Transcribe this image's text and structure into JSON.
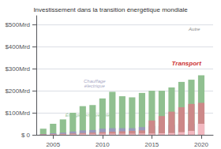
{
  "chart_data": {
    "type": "bar",
    "stacked": true,
    "title": "Investissement dans la transition énergétique mondiale",
    "x": [
      2004,
      2005,
      2006,
      2007,
      2008,
      2009,
      2010,
      2011,
      2012,
      2013,
      2014,
      2015,
      2016,
      2017,
      2018,
      2019,
      2020
    ],
    "series": [
      {
        "color": "#90c090",
        "values": [
          28,
          50,
          70,
          100,
          130,
          135,
          165,
          195,
          175,
          170,
          190,
          200,
          200,
          215,
          240,
          250,
          270
        ]
      },
      {
        "color": "#9999bb",
        "values": [
          4,
          7,
          10,
          15,
          20,
          22,
          28,
          30,
          30,
          30,
          35,
          40,
          40,
          45,
          50,
          50,
          55
        ]
      },
      {
        "color": "#cc8888",
        "values": [
          2,
          3,
          4,
          6,
          8,
          10,
          12,
          14,
          16,
          18,
          20,
          65,
          85,
          105,
          125,
          140,
          145
        ]
      },
      {
        "color": "#f2b8c0",
        "values": [
          1,
          2,
          2,
          3,
          4,
          4,
          5,
          5,
          5,
          5,
          6,
          6,
          7,
          8,
          12,
          18,
          50
        ]
      }
    ],
    "xlim": [
      2003.3,
      2021.2
    ],
    "xticks": [
      2005,
      2010,
      2015,
      2020
    ],
    "ylim": [
      0,
      540
    ],
    "yticks": [
      {
        "value": 0,
        "label": "$ 0"
      },
      {
        "value": 100,
        "label": "$100Mrd"
      },
      {
        "value": 200,
        "label": "$200Mrd"
      },
      {
        "value": 300,
        "label": "$300Mrd"
      },
      {
        "value": 400,
        "label": "$400Mrd"
      },
      {
        "value": 500,
        "label": "$500Mrd"
      }
    ],
    "grid": true,
    "annotations": [
      {
        "text": "Énergie renouvelable",
        "color": "#90c090"
      },
      {
        "text": "Chauffage\nélectrique",
        "color": "#9999bb"
      },
      {
        "text": "Transport",
        "color": "#cc3333"
      },
      {
        "text": "Autre",
        "color": "#888888"
      }
    ]
  }
}
